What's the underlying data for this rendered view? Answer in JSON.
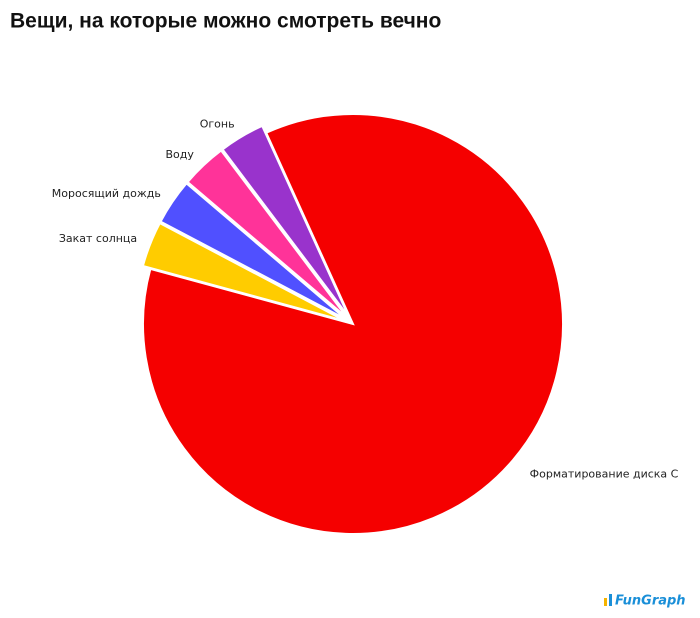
{
  "chart_data": {
    "type": "pie",
    "title": "Вещи, на которые можно смотреть вечно",
    "categories": [
      "Форматирование диска С",
      "Закат солнца",
      "Моросящий дождь",
      "Воду",
      "Огонь"
    ],
    "values": [
      86,
      3.5,
      3.5,
      3.5,
      3.5
    ],
    "colors": [
      "#f50000",
      "#ffcc00",
      "#5050ff",
      "#ff3399",
      "#9933cc"
    ],
    "watermark": "FunGraph"
  }
}
